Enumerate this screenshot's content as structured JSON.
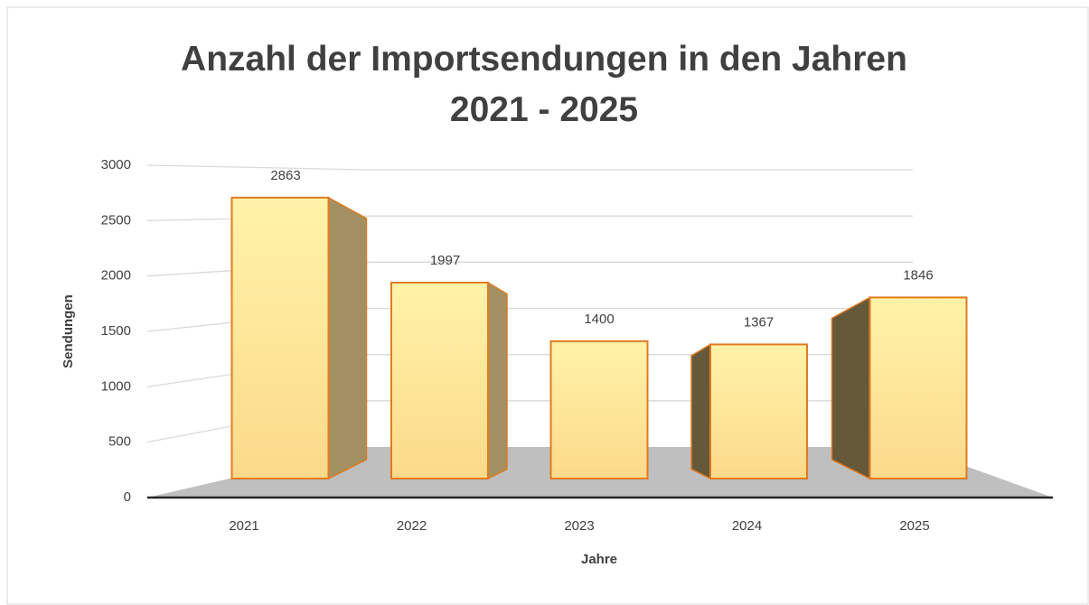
{
  "chart_data": {
    "type": "bar3d",
    "title": "Anzahl der Importsendungen in den Jahren 2021 - 2025",
    "categories": [
      "2021",
      "2022",
      "2023",
      "2024",
      "2025"
    ],
    "values": [
      2863,
      1997,
      1400,
      1367,
      1846
    ],
    "x_label": "Jahre",
    "y_label": "Sendungen",
    "ylim": [
      0,
      3000
    ],
    "yticks": [
      0,
      500,
      1000,
      1500,
      2000,
      2500,
      3000
    ],
    "grid": true,
    "color": "#ffe08a"
  }
}
